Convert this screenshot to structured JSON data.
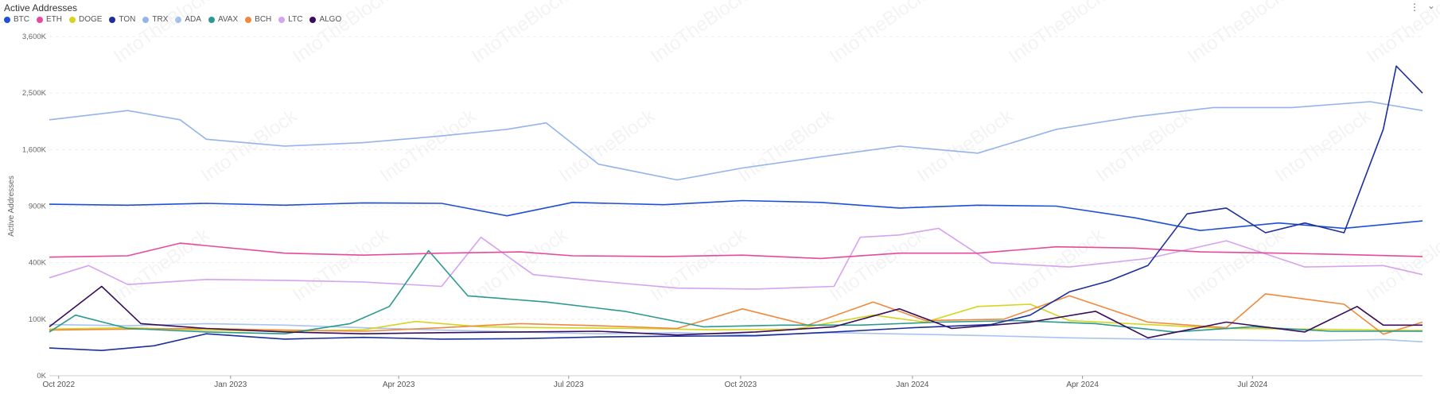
{
  "colors": {
    "BTC": "#1f4fd6",
    "ETH": "#e8499a",
    "DOGE": "#d7d41f",
    "TON": "#1c2f9c",
    "TRX": "#95b4ec",
    "ADA": "#a8c4ef",
    "AVAX": "#2a9a8f",
    "BCH": "#ef8a3d",
    "LTC": "#d5a3ef",
    "ALGO": "#3a0d5c"
  },
  "chart_data": {
    "type": "line",
    "title": "Active Addresses",
    "ylabel": "Active Addresses",
    "y_scale": "sqrt",
    "ylim": [
      0,
      3600000
    ],
    "y_ticks": [
      0,
      100000,
      400000,
      900000,
      1600000,
      2500000,
      3600000
    ],
    "y_tick_labels": [
      "0K",
      "100K",
      "400K",
      "900K",
      "1,600K",
      "2,500K",
      "3,600K"
    ],
    "x_range": [
      "2022-09-26",
      "2024-09-30"
    ],
    "x_ticks": [
      "2022-10-01",
      "2023-01-01",
      "2023-04-01",
      "2023-07-01",
      "2023-10-01",
      "2024-01-01",
      "2024-04-01",
      "2024-07-01"
    ],
    "x_tick_labels": [
      "Oct 2022",
      "Jan 2023",
      "Apr 2023",
      "Jul 2023",
      "Oct 2023",
      "Jan 2024",
      "Apr 2024",
      "Jul 2024"
    ],
    "grid": true,
    "legend_position": "top-left",
    "series": [
      {
        "name": "BTC",
        "points": [
          [
            "2022-09-26",
            920000
          ],
          [
            "2022-11-07",
            910000
          ],
          [
            "2022-12-19",
            930000
          ],
          [
            "2023-01-30",
            910000
          ],
          [
            "2023-03-13",
            935000
          ],
          [
            "2023-04-24",
            930000
          ],
          [
            "2023-05-29",
            800000
          ],
          [
            "2023-07-03",
            940000
          ],
          [
            "2023-08-21",
            915000
          ],
          [
            "2023-10-02",
            960000
          ],
          [
            "2023-11-13",
            940000
          ],
          [
            "2023-12-25",
            880000
          ],
          [
            "2024-02-05",
            910000
          ],
          [
            "2024-03-18",
            900000
          ],
          [
            "2024-04-29",
            780000
          ],
          [
            "2024-06-03",
            660000
          ],
          [
            "2024-07-15",
            730000
          ],
          [
            "2024-08-19",
            680000
          ],
          [
            "2024-09-30",
            750000
          ]
        ]
      },
      {
        "name": "ETH",
        "points": [
          [
            "2022-09-26",
            440000
          ],
          [
            "2022-11-07",
            450000
          ],
          [
            "2022-12-05",
            550000
          ],
          [
            "2023-01-30",
            470000
          ],
          [
            "2023-03-13",
            455000
          ],
          [
            "2023-04-24",
            470000
          ],
          [
            "2023-06-05",
            480000
          ],
          [
            "2023-07-03",
            450000
          ],
          [
            "2023-08-21",
            445000
          ],
          [
            "2023-10-02",
            455000
          ],
          [
            "2023-11-13",
            430000
          ],
          [
            "2023-12-25",
            470000
          ],
          [
            "2024-02-05",
            470000
          ],
          [
            "2024-03-18",
            520000
          ],
          [
            "2024-04-29",
            510000
          ],
          [
            "2024-06-03",
            480000
          ],
          [
            "2024-07-15",
            470000
          ],
          [
            "2024-08-19",
            460000
          ],
          [
            "2024-09-30",
            445000
          ]
        ]
      },
      {
        "name": "DOGE",
        "points": [
          [
            "2022-09-26",
            68000
          ],
          [
            "2022-11-07",
            72000
          ],
          [
            "2022-12-19",
            65000
          ],
          [
            "2023-01-30",
            62000
          ],
          [
            "2023-03-13",
            66000
          ],
          [
            "2023-04-10",
            92000
          ],
          [
            "2023-05-15",
            75000
          ],
          [
            "2023-06-19",
            72000
          ],
          [
            "2023-08-07",
            70000
          ],
          [
            "2023-09-18",
            66000
          ],
          [
            "2023-10-30",
            68000
          ],
          [
            "2023-12-11",
            115000
          ],
          [
            "2024-01-08",
            90000
          ],
          [
            "2024-02-05",
            150000
          ],
          [
            "2024-03-04",
            160000
          ],
          [
            "2024-03-25",
            95000
          ],
          [
            "2024-05-06",
            82000
          ],
          [
            "2024-06-17",
            70000
          ],
          [
            "2024-07-29",
            68000
          ],
          [
            "2024-09-30",
            64000
          ]
        ]
      },
      {
        "name": "TON",
        "points": [
          [
            "2022-09-26",
            24000
          ],
          [
            "2022-10-24",
            20000
          ],
          [
            "2022-11-21",
            28000
          ],
          [
            "2022-12-19",
            55000
          ],
          [
            "2023-01-30",
            42000
          ],
          [
            "2023-03-13",
            46000
          ],
          [
            "2023-04-24",
            42000
          ],
          [
            "2023-06-05",
            43000
          ],
          [
            "2023-07-17",
            47000
          ],
          [
            "2023-08-28",
            49000
          ],
          [
            "2023-10-09",
            50000
          ],
          [
            "2023-11-20",
            60000
          ],
          [
            "2024-01-01",
            72000
          ],
          [
            "2024-02-12",
            82000
          ],
          [
            "2024-03-04",
            115000
          ],
          [
            "2024-03-25",
            220000
          ],
          [
            "2024-04-15",
            280000
          ],
          [
            "2024-05-06",
            380000
          ],
          [
            "2024-05-27",
            820000
          ],
          [
            "2024-06-17",
            880000
          ],
          [
            "2024-07-08",
            640000
          ],
          [
            "2024-07-29",
            730000
          ],
          [
            "2024-08-19",
            640000
          ],
          [
            "2024-09-09",
            1900000
          ],
          [
            "2024-09-16",
            3000000
          ],
          [
            "2024-09-30",
            2500000
          ]
        ]
      },
      {
        "name": "TRX",
        "points": [
          [
            "2022-09-26",
            2050000
          ],
          [
            "2022-11-07",
            2200000
          ],
          [
            "2022-12-05",
            2050000
          ],
          [
            "2022-12-19",
            1750000
          ],
          [
            "2023-01-30",
            1650000
          ],
          [
            "2023-03-13",
            1700000
          ],
          [
            "2023-04-24",
            1800000
          ],
          [
            "2023-05-29",
            1900000
          ],
          [
            "2023-06-19",
            2000000
          ],
          [
            "2023-07-17",
            1400000
          ],
          [
            "2023-08-28",
            1200000
          ],
          [
            "2023-10-02",
            1350000
          ],
          [
            "2023-11-13",
            1500000
          ],
          [
            "2023-12-25",
            1650000
          ],
          [
            "2024-02-05",
            1550000
          ],
          [
            "2024-03-18",
            1900000
          ],
          [
            "2024-04-29",
            2100000
          ],
          [
            "2024-06-10",
            2250000
          ],
          [
            "2024-07-22",
            2250000
          ],
          [
            "2024-09-02",
            2350000
          ],
          [
            "2024-09-30",
            2200000
          ]
        ]
      },
      {
        "name": "ADA",
        "points": [
          [
            "2022-09-26",
            82000
          ],
          [
            "2022-11-07",
            78000
          ],
          [
            "2022-12-19",
            85000
          ],
          [
            "2023-01-30",
            80000
          ],
          [
            "2023-03-13",
            72000
          ],
          [
            "2023-04-24",
            65000
          ],
          [
            "2023-06-05",
            60000
          ],
          [
            "2023-07-17",
            55000
          ],
          [
            "2023-08-28",
            58000
          ],
          [
            "2023-10-09",
            52000
          ],
          [
            "2023-11-20",
            58000
          ],
          [
            "2024-01-01",
            54000
          ],
          [
            "2024-02-12",
            50000
          ],
          [
            "2024-03-25",
            45000
          ],
          [
            "2024-05-06",
            42000
          ],
          [
            "2024-06-17",
            40000
          ],
          [
            "2024-07-29",
            38000
          ],
          [
            "2024-09-09",
            41000
          ],
          [
            "2024-09-30",
            36000
          ]
        ]
      },
      {
        "name": "AVAX",
        "points": [
          [
            "2022-09-26",
            60000
          ],
          [
            "2022-10-10",
            115000
          ],
          [
            "2022-11-07",
            70000
          ],
          [
            "2022-12-19",
            60000
          ],
          [
            "2023-01-30",
            55000
          ],
          [
            "2023-03-06",
            85000
          ],
          [
            "2023-03-27",
            150000
          ],
          [
            "2023-04-17",
            490000
          ],
          [
            "2023-05-08",
            200000
          ],
          [
            "2023-06-19",
            170000
          ],
          [
            "2023-07-31",
            130000
          ],
          [
            "2023-09-11",
            75000
          ],
          [
            "2023-10-23",
            80000
          ],
          [
            "2023-12-04",
            80000
          ],
          [
            "2024-01-15",
            90000
          ],
          [
            "2024-02-26",
            95000
          ],
          [
            "2024-04-08",
            85000
          ],
          [
            "2024-05-20",
            60000
          ],
          [
            "2024-07-01",
            75000
          ],
          [
            "2024-08-12",
            62000
          ],
          [
            "2024-09-30",
            62000
          ]
        ]
      },
      {
        "name": "BCH",
        "points": [
          [
            "2022-09-26",
            65000
          ],
          [
            "2022-11-07",
            68000
          ],
          [
            "2022-12-19",
            70000
          ],
          [
            "2023-01-30",
            65000
          ],
          [
            "2023-03-13",
            62000
          ],
          [
            "2023-04-24",
            72000
          ],
          [
            "2023-06-05",
            85000
          ],
          [
            "2023-07-17",
            78000
          ],
          [
            "2023-08-28",
            70000
          ],
          [
            "2023-10-02",
            140000
          ],
          [
            "2023-11-06",
            80000
          ],
          [
            "2023-12-11",
            170000
          ],
          [
            "2024-01-08",
            95000
          ],
          [
            "2024-02-19",
            100000
          ],
          [
            "2024-03-25",
            200000
          ],
          [
            "2024-05-06",
            90000
          ],
          [
            "2024-06-17",
            72000
          ],
          [
            "2024-07-08",
            210000
          ],
          [
            "2024-08-19",
            160000
          ],
          [
            "2024-09-09",
            54000
          ],
          [
            "2024-09-30",
            90000
          ]
        ]
      },
      {
        "name": "LTC",
        "points": [
          [
            "2022-09-26",
            300000
          ],
          [
            "2022-10-17",
            380000
          ],
          [
            "2022-11-07",
            260000
          ],
          [
            "2022-12-19",
            290000
          ],
          [
            "2023-01-30",
            285000
          ],
          [
            "2023-03-13",
            275000
          ],
          [
            "2023-04-24",
            250000
          ],
          [
            "2023-05-15",
            600000
          ],
          [
            "2023-06-12",
            320000
          ],
          [
            "2023-07-17",
            280000
          ],
          [
            "2023-08-28",
            240000
          ],
          [
            "2023-10-09",
            235000
          ],
          [
            "2023-11-20",
            250000
          ],
          [
            "2023-12-04",
            600000
          ],
          [
            "2023-12-25",
            620000
          ],
          [
            "2024-01-15",
            680000
          ],
          [
            "2024-02-12",
            400000
          ],
          [
            "2024-03-25",
            370000
          ],
          [
            "2024-05-06",
            430000
          ],
          [
            "2024-06-17",
            570000
          ],
          [
            "2024-07-29",
            370000
          ],
          [
            "2024-09-09",
            380000
          ],
          [
            "2024-09-30",
            320000
          ]
        ]
      },
      {
        "name": "ALGO",
        "points": [
          [
            "2022-09-26",
            75000
          ],
          [
            "2022-10-24",
            250000
          ],
          [
            "2022-11-14",
            85000
          ],
          [
            "2022-12-19",
            70000
          ],
          [
            "2023-01-30",
            60000
          ],
          [
            "2023-03-13",
            55000
          ],
          [
            "2023-04-24",
            58000
          ],
          [
            "2023-06-05",
            60000
          ],
          [
            "2023-07-17",
            62000
          ],
          [
            "2023-08-28",
            52000
          ],
          [
            "2023-10-09",
            60000
          ],
          [
            "2023-11-20",
            75000
          ],
          [
            "2023-12-25",
            140000
          ],
          [
            "2024-01-22",
            70000
          ],
          [
            "2024-03-04",
            90000
          ],
          [
            "2024-04-08",
            130000
          ],
          [
            "2024-05-06",
            45000
          ],
          [
            "2024-06-17",
            90000
          ],
          [
            "2024-07-29",
            60000
          ],
          [
            "2024-08-26",
            150000
          ],
          [
            "2024-09-09",
            80000
          ],
          [
            "2024-09-30",
            80000
          ]
        ]
      }
    ]
  },
  "watermark": "IntoTheBlock"
}
